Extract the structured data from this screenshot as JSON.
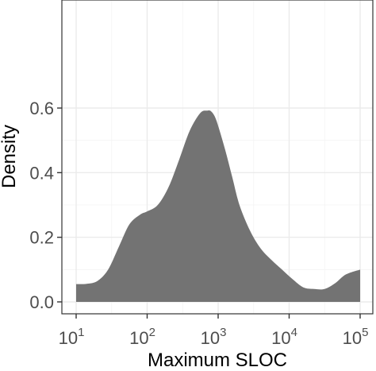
{
  "chart_data": {
    "type": "area",
    "xlabel": "Maximum SLOC",
    "ylabel": "Density",
    "x_scale": "log10",
    "xlim": [
      10,
      100000
    ],
    "ylim": [
      0,
      0.62
    ],
    "x_ticks": [
      {
        "value": 10,
        "base": "10",
        "exp": "1"
      },
      {
        "value": 100,
        "base": "10",
        "exp": "2"
      },
      {
        "value": 1000,
        "base": "10",
        "exp": "3"
      },
      {
        "value": 10000,
        "base": "10",
        "exp": "4"
      },
      {
        "value": 100000,
        "base": "10",
        "exp": "5"
      }
    ],
    "y_ticks": [
      {
        "value": 0.0,
        "label": "0.0"
      },
      {
        "value": 0.2,
        "label": "0.2"
      },
      {
        "value": 0.4,
        "label": "0.4"
      },
      {
        "value": 0.6,
        "label": "0.6"
      }
    ],
    "grid": true,
    "fill_color": "#737373",
    "series": [
      {
        "x": [
          10,
          14.1,
          20,
          28.2,
          39.8,
          56.2,
          79.4,
          100,
          141,
          200,
          282,
          398,
          562,
          708,
          794,
          891,
          1000,
          1259,
          1585,
          1995,
          2818,
          3981,
          5623,
          7943,
          11220,
          15850,
          22390,
          31620,
          44670,
          63100,
          100000
        ],
        "y": [
          0.055,
          0.056,
          0.065,
          0.1,
          0.17,
          0.24,
          0.27,
          0.28,
          0.3,
          0.355,
          0.44,
          0.53,
          0.585,
          0.592,
          0.59,
          0.575,
          0.545,
          0.47,
          0.385,
          0.3,
          0.22,
          0.165,
          0.13,
          0.1,
          0.07,
          0.045,
          0.04,
          0.04,
          0.058,
          0.085,
          0.1
        ]
      }
    ]
  }
}
